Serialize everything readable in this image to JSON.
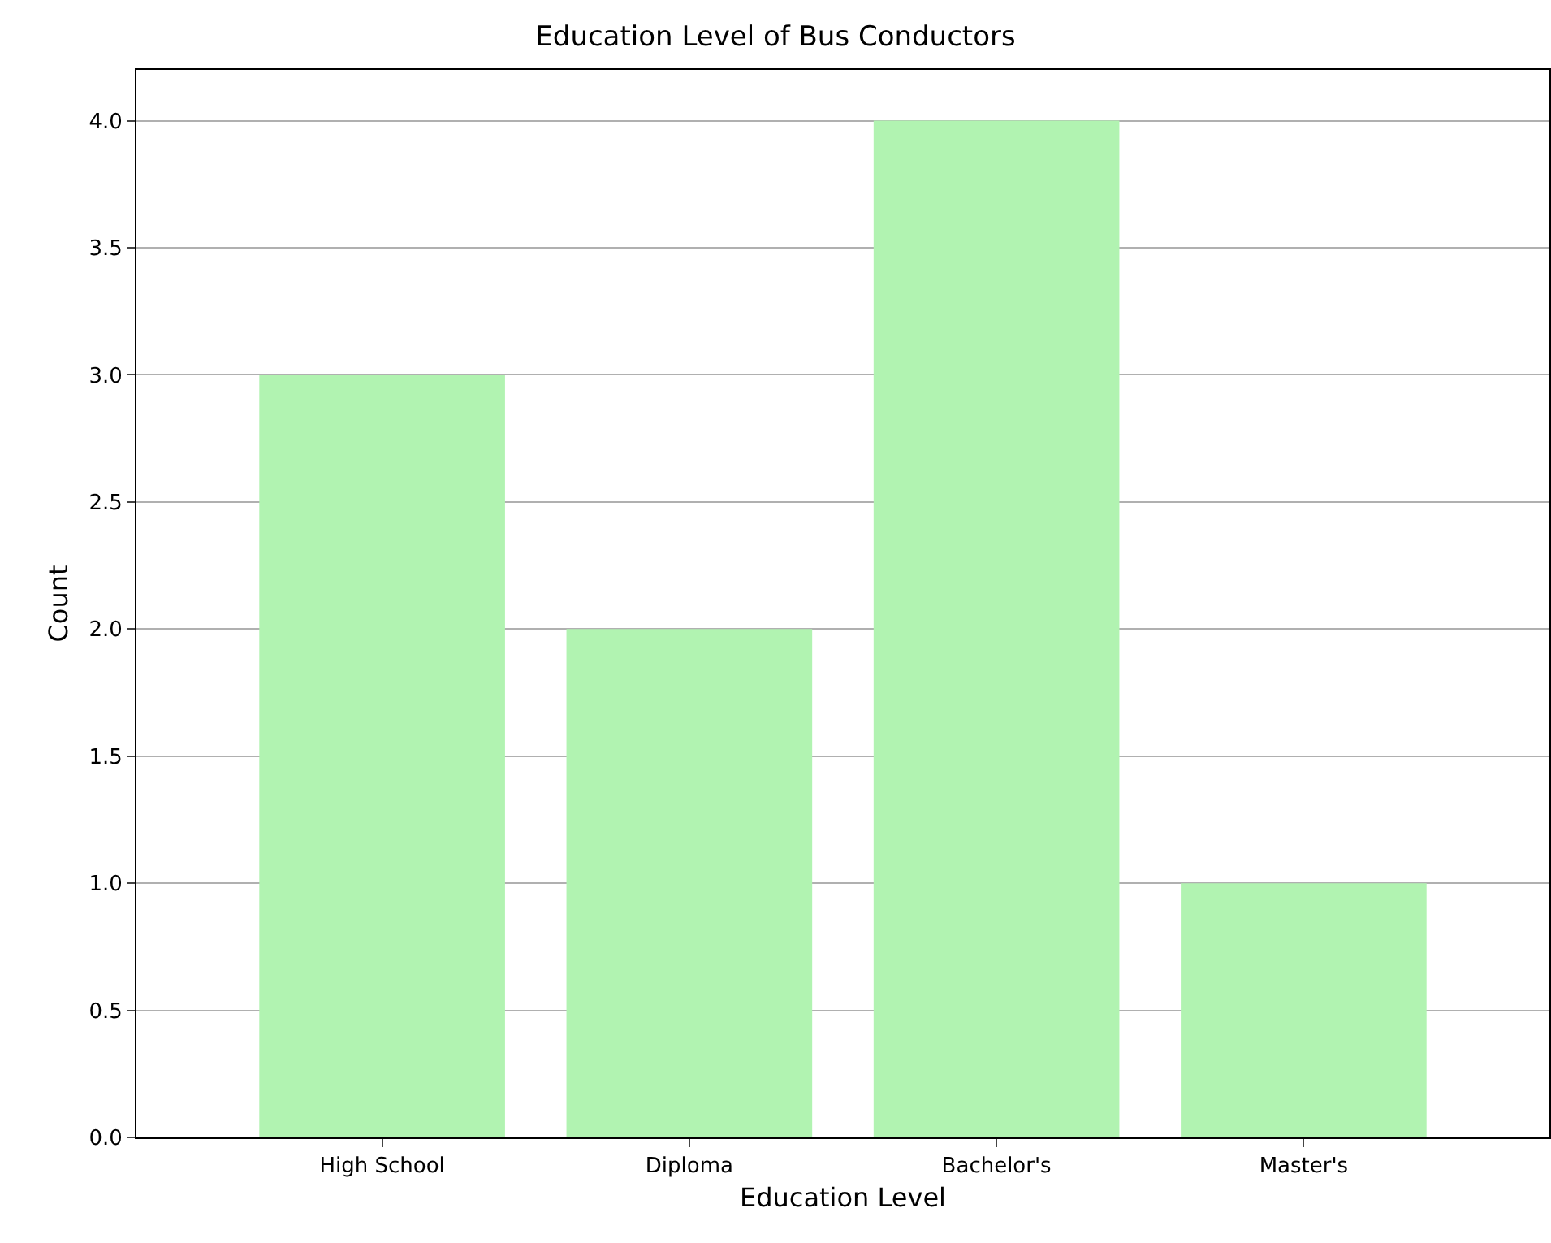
{
  "chart_data": {
    "type": "bar",
    "title": "Education Level of Bus Conductors",
    "xlabel": "Education Level",
    "ylabel": "Count",
    "categories": [
      "High School",
      "Diploma",
      "Bachelor's",
      "Master's"
    ],
    "values": [
      3,
      2,
      4,
      1
    ],
    "color": "#b1f3b1",
    "ylim": [
      0,
      4.2
    ],
    "yticks": [
      {
        "value": 0,
        "label": "0.0"
      },
      {
        "value": 0.5,
        "label": "0.5"
      },
      {
        "value": 1,
        "label": "1.0"
      },
      {
        "value": 1.5,
        "label": "1.5"
      },
      {
        "value": 2,
        "label": "2.0"
      },
      {
        "value": 2.5,
        "label": "2.5"
      },
      {
        "value": 3,
        "label": "3.0"
      },
      {
        "value": 3.5,
        "label": "3.5"
      },
      {
        "value": 4,
        "label": "4.0"
      }
    ],
    "grid": "y"
  }
}
